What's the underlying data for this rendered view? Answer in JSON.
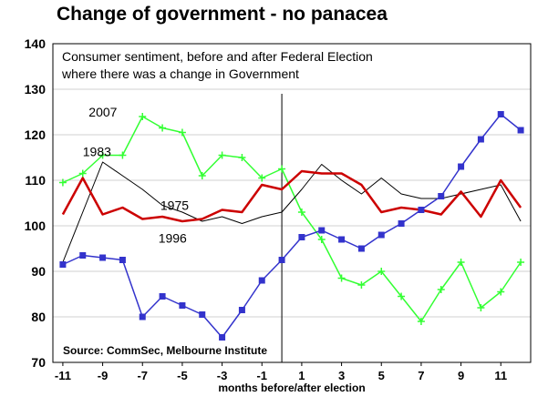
{
  "title": "Change of government - no panacea",
  "chart_data": {
    "type": "line",
    "subtitle_line1": "Consumer sentiment, before and after Federal Election",
    "subtitle_line2": "where there was a change in Government",
    "source": "Source: CommSec, Melbourne Institute",
    "xlabel": "months before/after election",
    "ylabel": "",
    "xlim": [
      -11.5,
      12.5
    ],
    "ylim": [
      70,
      140
    ],
    "y_ticks": [
      70,
      80,
      90,
      100,
      110,
      120,
      130,
      140
    ],
    "x_ticks": [
      -11,
      -9,
      -7,
      -5,
      -3,
      -1,
      1,
      3,
      5,
      7,
      9,
      11
    ],
    "x_tick_labels": [
      "-11",
      "-9",
      "-7",
      "-5",
      "-3",
      "-1",
      "1",
      "3",
      "5",
      "7",
      "9",
      "11"
    ],
    "election_line_x": 0,
    "x": [
      -11,
      -10,
      -9,
      -8,
      -7,
      -6,
      -5,
      -4,
      -3,
      -2,
      -1,
      0,
      1,
      2,
      3,
      4,
      5,
      6,
      7,
      8,
      9,
      10,
      11,
      12
    ],
    "series": [
      {
        "name": "2007",
        "color": "#33ff33",
        "marker": "plus",
        "label_at": [
          -9.7,
          124
        ],
        "values": [
          109.5,
          111.5,
          115.5,
          115.5,
          124,
          121.5,
          120.5,
          111,
          115.5,
          115,
          110.5,
          112.5,
          103,
          97,
          88.5,
          87,
          90,
          84.5,
          79,
          86,
          92,
          82,
          85.5,
          92
        ]
      },
      {
        "name": "1975",
        "color": "#000000",
        "marker": "none",
        "label_at": [
          -6.1,
          103.5
        ],
        "values": [
          92,
          103,
          114,
          111,
          108,
          104.5,
          103,
          101,
          102,
          100.5,
          102,
          103,
          108,
          113.5,
          110,
          107,
          110.5,
          107,
          106,
          106,
          107,
          108,
          109,
          101
        ]
      },
      {
        "name": "1996",
        "color": "#cc0000",
        "marker": "none",
        "label_at": [
          -6.2,
          96.3
        ],
        "values": [
          102.5,
          110.5,
          102.5,
          104,
          101.5,
          102,
          101,
          101.5,
          103.5,
          103,
          109,
          108,
          112,
          111.5,
          111.5,
          109,
          103,
          104,
          103.5,
          102.5,
          107.5,
          102,
          110,
          104
        ]
      },
      {
        "name": "1983",
        "color": "#3333cc",
        "marker": "square",
        "label_at": [
          -10,
          115.3
        ],
        "values": [
          91.5,
          93.5,
          93,
          92.5,
          80,
          84.5,
          82.5,
          80.5,
          75.5,
          81.5,
          88,
          92.5,
          97.5,
          99,
          97,
          95,
          98,
          100.5,
          103.5,
          106.5,
          113,
          119,
          124.5,
          121
        ]
      }
    ]
  }
}
